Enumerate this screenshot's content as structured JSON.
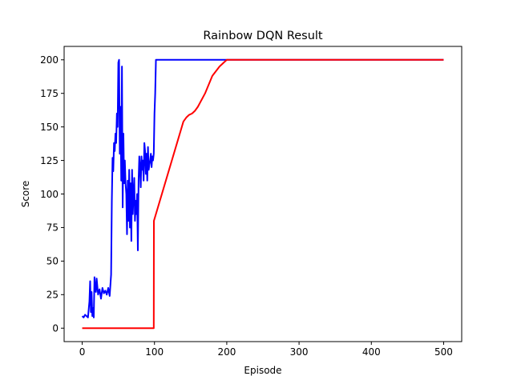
{
  "chart_data": {
    "type": "line",
    "title": "Rainbow DQN Result",
    "xlabel": "Episode",
    "ylabel": "Score",
    "xlim": [
      -25,
      525
    ],
    "ylim": [
      -10,
      210
    ],
    "xticks": [
      0,
      100,
      200,
      300,
      400,
      500
    ],
    "yticks": [
      0,
      25,
      50,
      75,
      100,
      125,
      150,
      175,
      200
    ],
    "grid": false,
    "legend": "none",
    "series": [
      {
        "color": "#0000ff",
        "x": [
          0,
          2,
          4,
          6,
          8,
          10,
          11,
          12,
          13,
          14,
          15,
          16,
          17,
          18,
          19,
          20,
          22,
          24,
          26,
          28,
          30,
          32,
          34,
          36,
          38,
          40,
          41,
          42,
          43,
          44,
          45,
          46,
          47,
          48,
          49,
          50,
          51,
          52,
          53,
          54,
          55,
          56,
          57,
          58,
          59,
          60,
          61,
          62,
          63,
          64,
          65,
          66,
          67,
          68,
          69,
          70,
          71,
          72,
          73,
          74,
          75,
          76,
          77,
          78,
          79,
          80,
          81,
          82,
          83,
          84,
          85,
          86,
          87,
          88,
          89,
          90,
          91,
          92,
          93,
          94,
          95,
          96,
          97,
          98,
          99,
          100,
          101,
          102,
          200,
          500
        ],
        "values": [
          9,
          8,
          10,
          9,
          8,
          20,
          35,
          12,
          27,
          9,
          15,
          8,
          38,
          30,
          27,
          37,
          25,
          29,
          22,
          30,
          26,
          28,
          25,
          30,
          24,
          40,
          95,
          127,
          117,
          138,
          132,
          145,
          138,
          160,
          150,
          198,
          200,
          130,
          165,
          110,
          195,
          90,
          145,
          108,
          125,
          108,
          100,
          70,
          110,
          80,
          118,
          75,
          108,
          65,
          118,
          85,
          100,
          112,
          80,
          95,
          85,
          100,
          58,
          110,
          128,
          120,
          105,
          128,
          118,
          125,
          110,
          138,
          132,
          115,
          130,
          110,
          135,
          118,
          122,
          125,
          130,
          120,
          128,
          125,
          130,
          160,
          175,
          200,
          200,
          200
        ]
      },
      {
        "color": "#ff0000",
        "x": [
          0,
          99,
          99.2,
          140,
          144,
          148,
          152,
          156,
          160,
          170,
          180,
          190,
          200,
          500
        ],
        "values": [
          0,
          0,
          80,
          154,
          157,
          159,
          160,
          162,
          165,
          175,
          188,
          195,
          200,
          200
        ]
      }
    ]
  }
}
